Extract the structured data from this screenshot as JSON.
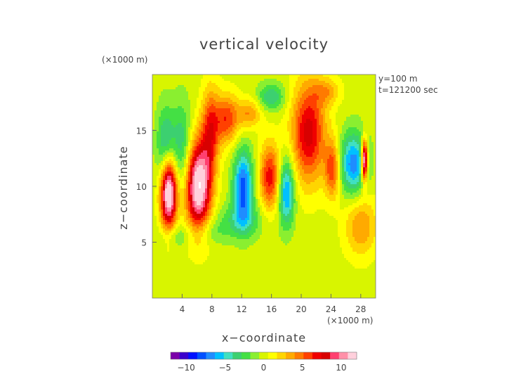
{
  "chart_data": {
    "type": "heatmap",
    "title": "vertical velocity",
    "xlabel": "x−coordinate",
    "ylabel": "z−coordinate",
    "x_unit": "(×1000 m)",
    "y_unit": "(×1000 m)",
    "annotations": [
      "y=100 m",
      "t=121200 sec"
    ],
    "xlim": [
      0,
      30
    ],
    "ylim": [
      0,
      20
    ],
    "x_ticks": [
      4,
      8,
      12,
      16,
      20,
      24,
      28
    ],
    "y_ticks": [
      5,
      10,
      15
    ],
    "x_tick_labels": [
      "4",
      "8",
      "12",
      "16",
      "20",
      "24",
      "28"
    ],
    "y_tick_labels": [
      "5",
      "10",
      "15"
    ],
    "colorbar": {
      "range": [
        -12,
        12
      ],
      "ticks": [
        -10,
        -5,
        0,
        5,
        10
      ],
      "tick_labels": [
        "−10",
        "−5",
        "0",
        "5",
        "10"
      ],
      "colors": [
        "#7a00a8",
        "#3a00cc",
        "#0010ff",
        "#0050ff",
        "#1f8cff",
        "#00c0ff",
        "#40e0c0",
        "#3cd070",
        "#44e044",
        "#8aef30",
        "#d8f500",
        "#ffff00",
        "#ffd500",
        "#ffaa00",
        "#ff7a00",
        "#ff4000",
        "#f00000",
        "#d80000",
        "#ff4070",
        "#ff90a8",
        "#ffd0dc"
      ]
    },
    "features": [
      {
        "x": 2.2,
        "z": 9.5,
        "rx": 1.1,
        "rz": 3.2,
        "value": 14
      },
      {
        "x": 6.2,
        "z": 10.0,
        "rx": 1.7,
        "rz": 4.0,
        "value": 13
      },
      {
        "x": 7.8,
        "z": 15.0,
        "rx": 1.2,
        "rz": 3.8,
        "value": 6
      },
      {
        "x": 10.0,
        "z": 16.0,
        "rx": 1.6,
        "rz": 2.2,
        "value": 6
      },
      {
        "x": 13.0,
        "z": 16.5,
        "rx": 1.6,
        "rz": 1.3,
        "value": 4
      },
      {
        "x": 15.8,
        "z": 10.8,
        "rx": 1.4,
        "rz": 3.0,
        "value": 7
      },
      {
        "x": 21.0,
        "z": 14.8,
        "rx": 2.3,
        "rz": 4.5,
        "value": 8
      },
      {
        "x": 24.2,
        "z": 11.5,
        "rx": 1.0,
        "rz": 2.5,
        "value": 6
      },
      {
        "x": 28.0,
        "z": 6.5,
        "rx": 2.2,
        "rz": 2.8,
        "value": 4
      },
      {
        "x": 4.0,
        "z": 13.5,
        "rx": 1.3,
        "rz": 4.0,
        "value": -4
      },
      {
        "x": 1.8,
        "z": 13.5,
        "rx": 1.2,
        "rz": 3.5,
        "value": -5
      },
      {
        "x": 12.2,
        "z": 10.0,
        "rx": 1.3,
        "rz": 3.2,
        "value": -8
      },
      {
        "x": 18.0,
        "z": 9.5,
        "rx": 1.1,
        "rz": 3.0,
        "value": -7
      },
      {
        "x": 12.0,
        "z": 7.0,
        "rx": 3.0,
        "rz": 1.6,
        "value": -3
      },
      {
        "x": 27.0,
        "z": 12.0,
        "rx": 1.8,
        "rz": 2.8,
        "value": -7
      },
      {
        "x": 28.5,
        "z": 12.3,
        "rx": 0.4,
        "rz": 1.8,
        "value": 14
      },
      {
        "x": 7.5,
        "z": 6.0,
        "rx": 2.5,
        "rz": 1.2,
        "value": -2
      },
      {
        "x": 3.0,
        "z": 5.5,
        "rx": 2.0,
        "rz": 1.0,
        "value": -2
      },
      {
        "x": 16.0,
        "z": 18.0,
        "rx": 1.8,
        "rz": 1.2,
        "value": -4
      },
      {
        "x": 19.0,
        "z": 3.0,
        "rx": 5.0,
        "rz": 2.0,
        "value": 0
      },
      {
        "x": 23.5,
        "z": 18.5,
        "rx": 1.8,
        "rz": 1.2,
        "value": 3
      }
    ]
  }
}
